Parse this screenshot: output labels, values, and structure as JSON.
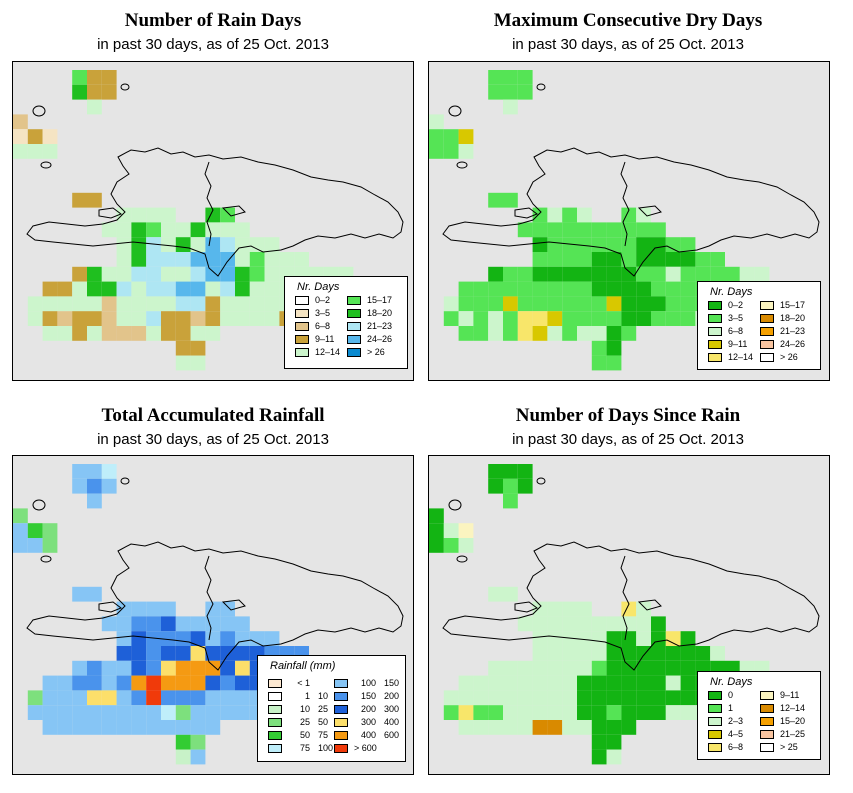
{
  "panels": [
    {
      "title": "Number of Rain Days",
      "subtitle": "in past 30 days, as of  25 Oct. 2013",
      "legend_title": "Nr. Days",
      "legend": [
        {
          "label": "0–2",
          "color": "#ffffff"
        },
        {
          "label": "3–5",
          "color": "#f5e4c3"
        },
        {
          "label": "6–8",
          "color": "#e2c48b"
        },
        {
          "label": "9–11",
          "color": "#c9a23a"
        },
        {
          "label": "12–14",
          "color": "#ccf5cc"
        },
        {
          "label": "15–17",
          "color": "#55e455"
        },
        {
          "label": "18–20",
          "color": "#1fbf1f"
        },
        {
          "label": "21–23",
          "color": "#aee6f3"
        },
        {
          "label": "24–26",
          "color": "#57b7ec"
        },
        {
          "label": "> 26",
          "color": "#0a8ad0"
        }
      ]
    },
    {
      "title": "Maximum Consecutive Dry Days",
      "subtitle": "in past 30 days, as of  25 Oct. 2013",
      "legend_title": "Nr. Days",
      "legend": [
        {
          "label": "0–2",
          "color": "#13b413"
        },
        {
          "label": "3–5",
          "color": "#55e455"
        },
        {
          "label": "6–8",
          "color": "#ccf5cc"
        },
        {
          "label": "9–11",
          "color": "#d8c800"
        },
        {
          "label": "12–14",
          "color": "#f8e66a"
        },
        {
          "label": "15–17",
          "color": "#fbf4c0"
        },
        {
          "label": "18–20",
          "color": "#d98a00"
        },
        {
          "label": "21–23",
          "color": "#f5a000"
        },
        {
          "label": "24–26",
          "color": "#f8c4a0"
        },
        {
          "label": "> 26",
          "color": "#ffffff"
        }
      ]
    },
    {
      "title": "Total Accumulated Rainfall",
      "subtitle": "in past 30 days, as of  25 Oct. 2013",
      "legend_title": "Rainfall (mm)",
      "legend": [
        {
          "label": "< 1",
          "label2": "",
          "color": "#fde9d2"
        },
        {
          "label": "1",
          "label2": "10",
          "color": "#ffffff"
        },
        {
          "label": "10",
          "label2": "25",
          "color": "#c8f2c8"
        },
        {
          "label": "25",
          "label2": "50",
          "color": "#7de07d"
        },
        {
          "label": "50",
          "label2": "75",
          "color": "#33cc33"
        },
        {
          "label": "75",
          "label2": "100",
          "color": "#bfeefa"
        },
        {
          "label": "100",
          "label2": "150",
          "color": "#86c5f5"
        },
        {
          "label": "150",
          "label2": "200",
          "color": "#4a93ec"
        },
        {
          "label": "200",
          "label2": "300",
          "color": "#1e60d8"
        },
        {
          "label": "300",
          "label2": "400",
          "color": "#fcdf6a"
        },
        {
          "label": "400",
          "label2": "600",
          "color": "#f59a12"
        },
        {
          "label": "> 600",
          "label2": "",
          "color": "#f03a0a"
        }
      ]
    },
    {
      "title": "Number of Days Since Rain",
      "subtitle": "in past 30 days, as of  25 Oct. 2013",
      "legend_title": "Nr. Days",
      "legend": [
        {
          "label": "0",
          "color": "#13b413"
        },
        {
          "label": "1",
          "color": "#55e455"
        },
        {
          "label": "2–3",
          "color": "#ccf5cc"
        },
        {
          "label": "4–5",
          "color": "#d8c800"
        },
        {
          "label": "6–8",
          "color": "#f8e66a"
        },
        {
          "label": "9–11",
          "color": "#fbf4c0"
        },
        {
          "label": "12–14",
          "color": "#d98a00"
        },
        {
          "label": "15–20",
          "color": "#f5a000"
        },
        {
          "label": "21–25",
          "color": "#f8c4a0"
        },
        {
          "label": "> 25",
          "color": "#ffffff"
        }
      ]
    }
  ],
  "grids": [
    {
      "default": "#ccf5cc",
      "overrides": {
        "0,4": "#55e455",
        "0,5": "#c9a23a",
        "0,6": "#c9a23a",
        "1,4": "#1fbf1f",
        "1,5": "#c9a23a",
        "1,6": "#c9a23a",
        "3,0": "#e2c48b",
        "4,1": "#c9a23a",
        "4,2": "#f5e4c3",
        "4,0": "#f5e4c3",
        "5,7": "#f5e4c3",
        "5,8": "#f5e4c3",
        "6,5": "#c9a23a",
        "6,4": "#c9a23a",
        "7,14": "#55e455",
        "7,13": "#1fbf1f",
        "8,8": "#1fbf1f",
        "8,12": "#1fbf1f",
        "8,9": "#55e455",
        "9,9": "#aee6f3",
        "9,13": "#57b7ec",
        "9,14": "#aee6f3",
        "9,11": "#1fbf1f",
        "9,8": "#1fbf1f",
        "10,8": "#1fbf1f",
        "10,9": "#aee6f3",
        "10,10": "#aee6f3",
        "10,11": "#aee6f3",
        "10,12": "#57b7ec",
        "10,13": "#57b7ec",
        "10,14": "#57b7ec",
        "10,16": "#55e455",
        "11,4": "#c9a23a",
        "11,5": "#1fbf1f",
        "11,8": "#aee6f3",
        "11,9": "#aee6f3",
        "11,12": "#aee6f3",
        "11,13": "#57b7ec",
        "11,14": "#57b7ec",
        "11,15": "#1fbf1f",
        "11,16": "#55e455",
        "12,2": "#c9a23a",
        "12,3": "#c9a23a",
        "12,5": "#1fbf1f",
        "12,6": "#1fbf1f",
        "12,7": "#aee6f3",
        "12,9": "#aee6f3",
        "12,10": "#aee6f3",
        "12,11": "#57b7ec",
        "12,12": "#57b7ec",
        "12,14": "#aee6f3",
        "12,15": "#1fbf1f",
        "12,23": "#c9a23a",
        "13,6": "#e2c48b",
        "13,13": "#c9a23a",
        "13,11": "#aee6f3",
        "13,12": "#aee6f3",
        "13,22": "#c9a23a",
        "14,2": "#c9a23a",
        "14,3": "#e2c48b",
        "14,4": "#c9a23a",
        "14,5": "#c9a23a",
        "14,6": "#e2c48b",
        "14,9": "#aee6f3",
        "14,10": "#c9a23a",
        "14,11": "#c9a23a",
        "14,12": "#e2c48b",
        "14,13": "#c9a23a",
        "14,18": "#c9a23a",
        "14,19": "#c9a23a",
        "14,20": "#c9a23a",
        "14,21": "#c9a23a",
        "14,22": "#c9a23a",
        "14,23": "#c9a23a",
        "15,4": "#c9a23a",
        "15,6": "#e2c48b",
        "15,7": "#e2c48b",
        "15,8": "#e2c48b",
        "15,10": "#c9a23a",
        "15,11": "#c9a23a",
        "16,11": "#c9a23a",
        "16,12": "#c9a23a"
      }
    },
    {
      "default": "#55e455",
      "overrides": {
        "0,4": "#55e455",
        "1,4": "#55e455",
        "2,5": "#ccf5cc",
        "3,0": "#ccf5cc",
        "4,2": "#d8c800",
        "5,1": "#55e455",
        "5,2": "#ccf5cc",
        "4,0": "#55e455",
        "7,8": "#ccf5cc",
        "7,10": "#ccf5cc",
        "7,11": "#ccf5cc",
        "7,14": "#ccf5cc",
        "9,7": "#13b413",
        "9,14": "#13b413",
        "9,15": "#13b413",
        "10,11": "#13b413",
        "10,12": "#13b413",
        "10,14": "#13b413",
        "10,15": "#13b413",
        "10,16": "#13b413",
        "10,17": "#13b413",
        "11,4": "#13b413",
        "11,7": "#13b413",
        "11,8": "#13b413",
        "11,9": "#13b413",
        "11,10": "#13b413",
        "11,11": "#13b413",
        "11,12": "#13b413",
        "11,13": "#13b413",
        "11,16": "#ccf5cc",
        "11,21": "#ccf5cc",
        "11,22": "#ccf5cc",
        "12,11": "#13b413",
        "12,12": "#13b413",
        "12,13": "#13b413",
        "12,14": "#13b413",
        "12,23": "#d8c800",
        "12,22": "#ccf5cc",
        "13,1": "#ccf5cc",
        "13,5": "#d8c800",
        "13,12": "#d8c800",
        "13,13": "#13b413",
        "13,14": "#13b413",
        "13,15": "#13b413",
        "13,21": "#ccf5cc",
        "14,2": "#ccf5cc",
        "14,4": "#ccf5cc",
        "14,6": "#f8e66a",
        "14,7": "#f8e66a",
        "14,8": "#d8c800",
        "14,13": "#13b413",
        "14,14": "#13b413",
        "14,18": "#ccf5cc",
        "14,20": "#ccf5cc",
        "15,4": "#ccf5cc",
        "15,6": "#f8e66a",
        "15,7": "#d8c800",
        "15,8": "#ccf5cc",
        "15,10": "#ccf5cc",
        "15,11": "#ccf5cc",
        "15,12": "#13b413",
        "16,11": "#55e455",
        "16,12": "#13b413"
      }
    },
    {
      "default": "#86c5f5",
      "overrides": {
        "0,4": "#86c5f5",
        "0,5": "#86c5f5",
        "0,6": "#bfeefa",
        "1,4": "#86c5f5",
        "1,5": "#4a93ec",
        "1,6": "#86c5f5",
        "3,0": "#7de07d",
        "4,1": "#33cc33",
        "4,2": "#7de07d",
        "5,2": "#7de07d",
        "8,8": "#4a93ec",
        "8,9": "#4a93ec",
        "8,10": "#1e60d8",
        "9,8": "#1e60d8",
        "9,9": "#4a93ec",
        "9,10": "#4a93ec",
        "9,11": "#4a93ec",
        "9,12": "#1e60d8",
        "9,14": "#4a93ec",
        "10,7": "#1e60d8",
        "10,8": "#1e60d8",
        "10,9": "#4a93ec",
        "10,10": "#1e60d8",
        "10,11": "#1e60d8",
        "10,12": "#fcdf6a",
        "10,13": "#1e60d8",
        "10,14": "#1e60d8",
        "10,15": "#1e60d8",
        "10,16": "#1e60d8",
        "10,17": "#4a93ec",
        "10,18": "#4a93ec",
        "10,19": "#4a93ec",
        "11,5": "#4a93ec",
        "11,8": "#1e60d8",
        "11,9": "#4a93ec",
        "11,10": "#fcdf6a",
        "11,11": "#f59a12",
        "11,12": "#f59a12",
        "11,13": "#f59a12",
        "11,14": "#1e60d8",
        "11,15": "#fcdf6a",
        "11,16": "#1e60d8",
        "11,17": "#1e60d8",
        "11,18": "#4a93ec",
        "11,19": "#86c5f5",
        "12,4": "#4a93ec",
        "12,5": "#4a93ec",
        "12,6": "#86c5f5",
        "12,7": "#4a93ec",
        "12,8": "#f59a12",
        "12,9": "#f03a0a",
        "12,10": "#f59a12",
        "12,11": "#f59a12",
        "12,12": "#f59a12",
        "12,13": "#1e60d8",
        "12,14": "#4a93ec",
        "12,15": "#1e60d8",
        "12,16": "#1e60d8",
        "12,17": "#4a93ec",
        "12,18": "#4a93ec",
        "12,19": "#4a93ec",
        "13,1": "#7de07d",
        "13,2": "#86c5f5",
        "13,5": "#fcdf6a",
        "13,6": "#fcdf6a",
        "13,8": "#4a93ec",
        "13,9": "#f03a0a",
        "13,10": "#4a93ec",
        "13,11": "#4a93ec",
        "13,12": "#4a93ec",
        "13,13": "#86c5f5",
        "13,14": "#86c5f5",
        "13,15": "#86c5f5",
        "13,20": "#86c5f5",
        "13,21": "#86c5f5",
        "14,9": "#86c5f5",
        "14,10": "#bfeefa",
        "14,11": "#7de07d",
        "14,12": "#86c5f5",
        "14,13": "#86c5f5",
        "14,18": "#86c5f5",
        "14,19": "#bfeefa",
        "14,20": "#bfeefa",
        "14,21": "#86c5f5",
        "15,9": "#86c5f5",
        "15,10": "#86c5f5",
        "15,11": "#86c5f5",
        "16,11": "#33cc33",
        "16,12": "#7de07d",
        "17,11": "#c8f2c8",
        "17,12": "#86c5f5"
      }
    },
    {
      "default": "#ccf5cc",
      "overrides": {
        "0,4": "#13b413",
        "0,5": "#13b413",
        "0,6": "#13b413",
        "1,4": "#13b413",
        "1,5": "#55e455",
        "1,6": "#13b413",
        "2,5": "#55e455",
        "3,0": "#13b413",
        "4,0": "#13b413",
        "4,1": "#ccf5cc",
        "4,2": "#fbf4c0",
        "5,0": "#13b413",
        "5,1": "#55e455",
        "5,2": "#ccf5cc",
        "7,13": "#f8e66a",
        "8,15": "#13b413",
        "9,12": "#13b413",
        "9,13": "#13b413",
        "9,15": "#13b413",
        "9,16": "#f8e66a",
        "9,17": "#13b413",
        "10,12": "#13b413",
        "10,13": "#13b413",
        "10,14": "#13b413",
        "10,15": "#13b413",
        "10,16": "#13b413",
        "10,17": "#13b413",
        "10,18": "#13b413",
        "11,11": "#55e455",
        "11,12": "#13b413",
        "11,13": "#13b413",
        "11,14": "#13b413",
        "11,15": "#13b413",
        "11,16": "#13b413",
        "11,17": "#13b413",
        "11,18": "#13b413",
        "11,19": "#13b413",
        "11,20": "#13b413",
        "12,10": "#13b413",
        "12,11": "#13b413",
        "12,12": "#13b413",
        "12,13": "#13b413",
        "12,14": "#13b413",
        "12,15": "#13b413",
        "12,16": "#ccf5cc",
        "12,17": "#13b413",
        "12,18": "#13b413",
        "12,19": "#13b413",
        "12,20": "#13b413",
        "12,21": "#55e455",
        "12,23": "#fbf4c0",
        "13,10": "#13b413",
        "13,11": "#13b413",
        "13,12": "#13b413",
        "13,13": "#13b413",
        "13,14": "#13b413",
        "13,15": "#13b413",
        "13,16": "#13b413",
        "13,17": "#13b413",
        "13,18": "#13b413",
        "13,19": "#13b413",
        "13,20": "#13b413",
        "13,21": "#13b413",
        "13,22": "#13b413",
        "14,1": "#55e455",
        "14,2": "#f8e66a",
        "14,3": "#55e455",
        "14,4": "#55e455",
        "14,10": "#13b413",
        "14,11": "#13b413",
        "14,12": "#55e455",
        "14,13": "#13b413",
        "14,14": "#13b413",
        "14,15": "#13b413",
        "15,7": "#d98a00",
        "15,8": "#d98a00",
        "15,11": "#13b413",
        "15,12": "#13b413",
        "15,13": "#13b413",
        "16,11": "#13b413",
        "16,12": "#13b413",
        "17,11": "#13b413"
      }
    }
  ]
}
